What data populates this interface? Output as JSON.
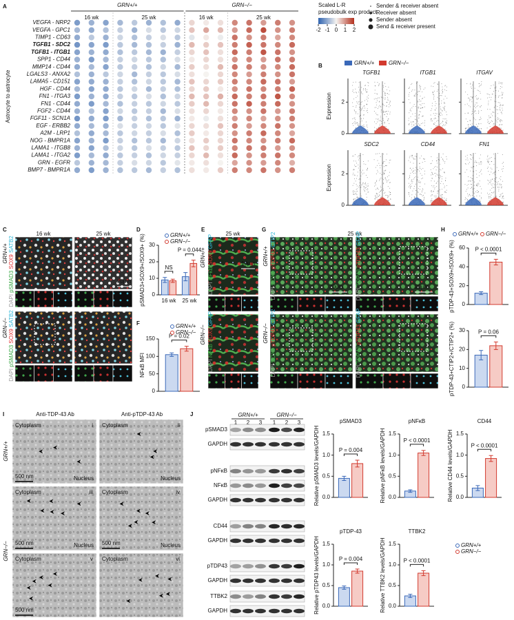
{
  "figure": {
    "panel_labels": [
      "A",
      "B",
      "C",
      "D",
      "E",
      "F",
      "G",
      "H",
      "I",
      "J"
    ],
    "c": {
      "ages": [
        "16 wk",
        "25 wk"
      ],
      "genotypes": [
        "GRN+/+",
        "GRN−/−"
      ],
      "stains": [
        {
          "text": "DAPI",
          "color": "#9a9a9a"
        },
        {
          "text": "pSMAD3",
          "color": "#3aa845"
        },
        {
          "text": "SOX9",
          "color": "#e03030"
        },
        {
          "text": "SATB2",
          "color": "#2fb8d8"
        }
      ],
      "scale": "20μm"
    },
    "e": {
      "age": "25 wk",
      "genotypes": [
        "GRN+/+",
        "GRN−/−"
      ],
      "stains": [
        {
          "text": "DAPI",
          "color": "#9a9a9a"
        },
        {
          "text": "NFκB",
          "color": "#3aa845"
        },
        {
          "text": "SOX9",
          "color": "#e03030"
        },
        {
          "text": "GFAP",
          "color": "#2fb8d8"
        }
      ],
      "scale": "10μm"
    },
    "g": {
      "age": "25 wk",
      "genotypes": [
        "GRN+/+",
        "GRN−/−"
      ],
      "stains_left": [
        {
          "text": "DAPI",
          "color": "#9a9a9a"
        },
        {
          "text": "SOX9",
          "color": "#3aa845"
        },
        {
          "text": "pTDP43",
          "color": "#e03030"
        },
        {
          "text": "CTIP2",
          "color": "#2fb8d8"
        }
      ],
      "stains_right": [
        {
          "text": "DAPI",
          "color": "#9a9a9a"
        },
        {
          "text": "TDP43",
          "color": "#3aa845"
        },
        {
          "text": "pTDP43",
          "color": "#e03030"
        },
        {
          "text": "GFAP",
          "color": "#2fb8d8"
        }
      ],
      "scale": "20μm"
    },
    "i": {
      "columns": [
        "Anti-TDP-43 Ab",
        "Anti-pTDP-43 Ab"
      ],
      "genotypes": [
        "GRN+/+",
        "GRN−/−"
      ],
      "cytoplasm": "Cytoplasm",
      "nucleus": "Nucleus",
      "scale": "500 nm",
      "numerals": [
        "i",
        "ii",
        "iii",
        "iv",
        "v",
        "vi"
      ]
    },
    "j_blots": {
      "genotypes": [
        "GRN+/+",
        "GRN−/−"
      ],
      "lanes": [
        "1",
        "2",
        "3",
        "1",
        "2",
        "3"
      ],
      "rows": [
        "pSMAD3",
        "GAPDH",
        "pNFκB",
        "NFκB",
        "GAPDH",
        "CD44",
        "GAPDH",
        "pTDP43",
        "GAPDH",
        "TTBK2",
        "GAPDH"
      ]
    }
  },
  "chart_data": [
    {
      "type": "dot_matrix",
      "ylabel": "Astrocyte to astrocyte",
      "rows": [
        "VEGFA - NRP2",
        "VEGFA - GPC1",
        "TIMP1 - CD63",
        "TGFB1 - SDC2",
        "TGFB1 - ITGB1",
        "SPP1 - CD44",
        "MMP14 - CD44",
        "LGALS3 - ANXA2",
        "LAMA5 - CD151",
        "HGF - CD44",
        "FN1 - ITGA3",
        "FN1 - CD44",
        "FGF2 - CD44",
        "FGF11 - SCN1A",
        "EGF - ERBB2",
        "A2M - LRP1",
        "NOG - BMPR1A",
        "LAMA1 - ITGB8",
        "LAMA1 - ITGA2",
        "GRN - EGFR",
        "BMP7 - BMPR1A"
      ],
      "bold_rows": [
        3,
        4
      ],
      "column_groups": [
        {
          "label": "GRN+/+",
          "subgroups": [
            "16 wk",
            "25 wk"
          ]
        },
        {
          "label": "GRN−/−",
          "subgroups": [
            "16 wk",
            "25 wk"
          ]
        }
      ],
      "subgroup_columns": [
        3,
        5,
        3,
        5
      ],
      "values": [
        [
          -1.2,
          -0.9,
          -1.1,
          -0.8,
          -0.6,
          -0.9,
          -0.7,
          -1.0,
          0.3,
          0.1,
          0.2,
          1.1,
          1.3,
          0.9,
          1.2,
          1.0
        ],
        [
          -0.8,
          -1.0,
          -0.7,
          -0.5,
          -0.9,
          -0.3,
          -0.6,
          -0.4,
          0.5,
          0.8,
          0.6,
          0.9,
          1.4,
          1.7,
          1.0,
          1.2
        ],
        [
          -1.0,
          -0.6,
          -0.9,
          -0.4,
          -0.7,
          -0.5,
          -0.3,
          -0.6,
          -0.2,
          0.1,
          -0.1,
          1.3,
          1.0,
          1.2,
          0.8,
          1.1
        ],
        [
          -1.3,
          -1.1,
          -1.2,
          -0.6,
          -0.8,
          -0.7,
          -0.5,
          -0.9,
          0.6,
          0.4,
          0.5,
          1.2,
          1.5,
          1.3,
          1.1,
          1.4
        ],
        [
          -1.1,
          -0.9,
          -1.0,
          -0.7,
          -0.6,
          -0.8,
          -0.9,
          -0.5,
          0.3,
          0.5,
          0.2,
          1.4,
          1.2,
          1.6,
          1.3,
          1.0
        ],
        [
          -0.9,
          -1.2,
          -0.8,
          -0.5,
          -0.4,
          -0.6,
          -0.7,
          -0.3,
          0.1,
          0.3,
          0.2,
          1.0,
          1.1,
          0.9,
          1.3,
          1.2
        ],
        [
          -1.0,
          -0.8,
          -1.1,
          -0.6,
          -0.5,
          -0.7,
          -0.4,
          -0.8,
          0.4,
          0.2,
          0.6,
          1.3,
          1.2,
          1.0,
          1.1,
          1.4
        ],
        [
          -0.7,
          -0.9,
          -0.6,
          -0.4,
          -0.8,
          -0.5,
          -0.6,
          -0.3,
          0.2,
          0.0,
          0.3,
          1.1,
          0.9,
          1.2,
          1.0,
          1.3
        ],
        [
          -1.1,
          -1.0,
          -0.9,
          -0.5,
          -0.7,
          -0.4,
          -0.6,
          -0.8,
          0.5,
          0.3,
          0.4,
          1.2,
          1.1,
          1.4,
          1.3,
          0.9
        ],
        [
          -0.8,
          -1.1,
          -1.0,
          -0.6,
          -0.4,
          -0.8,
          -0.5,
          -0.7,
          0.3,
          0.4,
          0.1,
          1.0,
          1.3,
          1.1,
          1.2,
          1.5
        ],
        [
          -1.2,
          -0.9,
          -1.0,
          -0.5,
          -0.6,
          -0.3,
          -0.7,
          -0.4,
          0.6,
          0.5,
          0.7,
          1.4,
          1.2,
          1.3,
          1.6,
          1.1
        ],
        [
          -1.0,
          -1.2,
          -0.8,
          -0.7,
          -0.5,
          -0.6,
          -0.4,
          -0.6,
          0.4,
          0.6,
          0.3,
          1.3,
          1.5,
          1.2,
          1.4,
          1.0
        ],
        [
          -0.9,
          -0.7,
          -1.1,
          -0.4,
          -0.6,
          -0.5,
          -0.8,
          -0.3,
          0.2,
          0.3,
          0.1,
          1.1,
          1.0,
          1.3,
          0.9,
          1.2
        ],
        [
          -1.3,
          -1.0,
          -1.2,
          -0.8,
          -0.5,
          -0.7,
          -0.6,
          -0.9,
          0.1,
          -0.1,
          0.2,
          0.9,
          1.1,
          0.8,
          1.0,
          1.2
        ],
        [
          -1.0,
          -0.8,
          -0.9,
          -0.3,
          -0.5,
          -0.4,
          -0.6,
          -0.2,
          0.3,
          0.2,
          0.5,
          1.2,
          0.9,
          1.1,
          1.3,
          1.0
        ],
        [
          -0.7,
          -1.0,
          -0.8,
          -0.6,
          -0.4,
          -0.5,
          -0.3,
          -0.7,
          0.4,
          0.1,
          0.3,
          1.0,
          1.2,
          1.4,
          1.1,
          0.8
        ],
        [
          -1.1,
          -0.9,
          -1.2,
          -0.5,
          -0.7,
          -0.6,
          -0.8,
          -0.4,
          0.2,
          0.4,
          0.3,
          1.3,
          1.1,
          1.0,
          1.2,
          1.4
        ],
        [
          -0.9,
          -1.1,
          -0.7,
          -0.4,
          -0.6,
          -0.3,
          -0.5,
          -0.6,
          0.5,
          0.3,
          0.4,
          1.1,
          1.3,
          1.2,
          0.9,
          1.0
        ],
        [
          -1.2,
          -0.8,
          -1.0,
          -0.6,
          -0.5,
          -0.7,
          -0.4,
          -0.5,
          0.3,
          0.6,
          0.2,
          1.4,
          1.0,
          1.2,
          1.3,
          1.1
        ],
        [
          -0.6,
          -0.9,
          -0.8,
          -0.5,
          -0.3,
          -0.4,
          -0.6,
          -0.2,
          0.1,
          0.2,
          0.0,
          0.8,
          1.0,
          0.9,
          1.1,
          0.7
        ],
        [
          -1.0,
          -1.2,
          -0.9,
          -0.7,
          -0.6,
          -0.8,
          -0.5,
          -0.7,
          0.2,
          0.1,
          0.4,
          1.2,
          1.1,
          1.3,
          1.0,
          1.2
        ]
      ],
      "colorbar_title": [
        "Scaled L-R",
        "pseudobulk exp product"
      ],
      "clim": [
        -2,
        2
      ],
      "cticks": [
        -2,
        -1,
        0,
        1,
        2
      ],
      "colors": [
        "#2f63b0",
        "#f5f3f0",
        "#b3301e"
      ],
      "size_legend": [
        "Sender & receiver absent",
        "Receiver absent",
        "Sender absent",
        "Send & receiver present"
      ]
    },
    {
      "type": "violin",
      "ylabel": "Expression",
      "panels": [
        "TGFB1",
        "ITGB1",
        "ITGAV",
        "SDC2",
        "CD44",
        "FN1"
      ],
      "series": [
        {
          "name": "GRN+/+",
          "color": "#3a68b8"
        },
        {
          "name": "GRN−/−",
          "color": "#d23a2e"
        }
      ],
      "ylim": [
        0,
        3.5
      ],
      "yticks": [
        0,
        2
      ]
    },
    {
      "type": "bar",
      "ylabel": "pSMAD3+SOX9+/SOX9+ (%)",
      "categories": [
        "16 wk",
        "25 wk"
      ],
      "series": [
        {
          "name": "GRN+/+",
          "color": "#3a68b8",
          "fill": "#cbd9f0",
          "values": [
            9,
            11
          ],
          "errors": [
            1.5,
            2.5
          ]
        },
        {
          "name": "GRN−/−",
          "color": "#d23a2e",
          "fill": "#f6cbc5",
          "values": [
            8.5,
            19
          ],
          "errors": [
            1,
            2
          ]
        }
      ],
      "ylim": [
        0,
        30
      ],
      "yticks": [
        0,
        10,
        20,
        30
      ],
      "annotations": [
        "NS",
        "P = 0.044"
      ]
    },
    {
      "type": "bar",
      "ylabel": "NFκB MFI",
      "series": [
        {
          "name": "GRN+/+",
          "color": "#3a68b8",
          "fill": "#cbd9f0",
          "values": [
            105
          ],
          "errors": [
            5
          ]
        },
        {
          "name": "GRN−/−",
          "color": "#d23a2e",
          "fill": "#f6cbc5",
          "values": [
            122
          ],
          "errors": [
            7
          ]
        }
      ],
      "ylim": [
        0,
        150
      ],
      "yticks": [
        0,
        50,
        100,
        150
      ],
      "annotations": [
        "P = 0.02"
      ]
    },
    {
      "type": "bar",
      "ylabel": "pTDP-43+SOX9+/SOX9+ (%)",
      "series": [
        {
          "name": "GRN+/+",
          "color": "#3a68b8",
          "fill": "#cbd9f0",
          "values": [
            12
          ],
          "errors": [
            1.5
          ]
        },
        {
          "name": "GRN−/−",
          "color": "#d23a2e",
          "fill": "#f6cbc5",
          "values": [
            45
          ],
          "errors": [
            3
          ]
        }
      ],
      "ylim": [
        0,
        60
      ],
      "yticks": [
        0,
        20,
        40,
        60
      ],
      "annotations": [
        "P < 0.0001"
      ]
    },
    {
      "type": "bar",
      "ylabel": "pTDP-43+CTIP2+/CTIP2+ (%)",
      "series": [
        {
          "color": "#3a68b8",
          "fill": "#cbd9f0",
          "values": [
            17
          ],
          "errors": [
            2.5
          ]
        },
        {
          "color": "#d23a2e",
          "fill": "#f6cbc5",
          "values": [
            22
          ],
          "errors": [
            2
          ]
        }
      ],
      "ylim": [
        0,
        30
      ],
      "yticks": [
        0,
        10,
        20,
        30
      ],
      "annotations": [
        "P = 0.06"
      ]
    },
    {
      "type": "bar",
      "title": "pSMAD3",
      "ylabel": "Relative pSMAD3 levels/GAPDH",
      "series": [
        {
          "color": "#3a68b8",
          "fill": "#cbd9f0",
          "values": [
            0.45
          ],
          "errors": [
            0.05
          ]
        },
        {
          "color": "#d23a2e",
          "fill": "#f6cbc5",
          "values": [
            0.8
          ],
          "errors": [
            0.08
          ]
        }
      ],
      "ylim": [
        0,
        1.5
      ],
      "yticks": [
        {
          "value": 0,
          "label": "0.0"
        },
        {
          "value": 0.5,
          "label": "0.5"
        },
        {
          "value": 1,
          "label": "1.0"
        },
        {
          "value": 1.5,
          "label": "1.5"
        }
      ],
      "annotations": [
        "P = 0.004"
      ]
    },
    {
      "type": "bar",
      "title": "pNFκB",
      "ylabel": "Relative pNFκB levels/GAPDH",
      "series": [
        {
          "color": "#3a68b8",
          "fill": "#cbd9f0",
          "values": [
            0.15
          ],
          "errors": [
            0.03
          ]
        },
        {
          "color": "#d23a2e",
          "fill": "#f6cbc5",
          "values": [
            1.05
          ],
          "errors": [
            0.06
          ]
        }
      ],
      "ylim": [
        0,
        1.5
      ],
      "yticks": [
        {
          "value": 0,
          "label": "0.0"
        },
        {
          "value": 0.5,
          "label": "0.5"
        },
        {
          "value": 1,
          "label": "1.0"
        },
        {
          "value": 1.5,
          "label": "1.5"
        }
      ],
      "annotations": [
        "P < 0.0001"
      ]
    },
    {
      "type": "bar",
      "title": "CD44",
      "ylabel": "Relative CD44 levels/GAPDH",
      "series": [
        {
          "color": "#3a68b8",
          "fill": "#cbd9f0",
          "values": [
            0.22
          ],
          "errors": [
            0.06
          ]
        },
        {
          "color": "#d23a2e",
          "fill": "#f6cbc5",
          "values": [
            0.92
          ],
          "errors": [
            0.07
          ]
        }
      ],
      "ylim": [
        0,
        1.5
      ],
      "yticks": [
        {
          "value": 0,
          "label": "0.0"
        },
        {
          "value": 0.5,
          "label": "0.5"
        },
        {
          "value": 1,
          "label": "1.0"
        },
        {
          "value": 1.5,
          "label": "1.5"
        }
      ],
      "annotations": [
        "P < 0.0001"
      ]
    },
    {
      "type": "bar",
      "title": "pTDP-43",
      "ylabel": "Relative pTDP43 levels/GAPDH",
      "series": [
        {
          "color": "#3a68b8",
          "fill": "#cbd9f0",
          "values": [
            0.45
          ],
          "errors": [
            0.04
          ]
        },
        {
          "color": "#d23a2e",
          "fill": "#f6cbc5",
          "values": [
            0.85
          ],
          "errors": [
            0.05
          ]
        }
      ],
      "ylim": [
        0,
        1.5
      ],
      "yticks": [
        {
          "value": 0,
          "label": "0.0"
        },
        {
          "value": 0.5,
          "label": "0.5"
        },
        {
          "value": 1,
          "label": "1.0"
        },
        {
          "value": 1.5,
          "label": "1.5"
        }
      ],
      "annotations": [
        "P = 0.004"
      ]
    },
    {
      "type": "bar",
      "title": "TTBK2",
      "ylabel": "Relative TTBK2 levels/GAPDH",
      "series": [
        {
          "name": "GRN+/+",
          "color": "#3a68b8",
          "fill": "#cbd9f0",
          "values": [
            0.25
          ],
          "errors": [
            0.04
          ]
        },
        {
          "name": "GRN−/−",
          "color": "#d23a2e",
          "fill": "#f6cbc5",
          "values": [
            0.8
          ],
          "errors": [
            0.06
          ]
        }
      ],
      "ylim": [
        0,
        1.5
      ],
      "yticks": [
        {
          "value": 0,
          "label": "0.0"
        },
        {
          "value": 0.5,
          "label": "0.5"
        },
        {
          "value": 1,
          "label": "1.0"
        },
        {
          "value": 1.5,
          "label": "1.5"
        }
      ],
      "annotations": [
        "P < 0.0001"
      ]
    }
  ]
}
